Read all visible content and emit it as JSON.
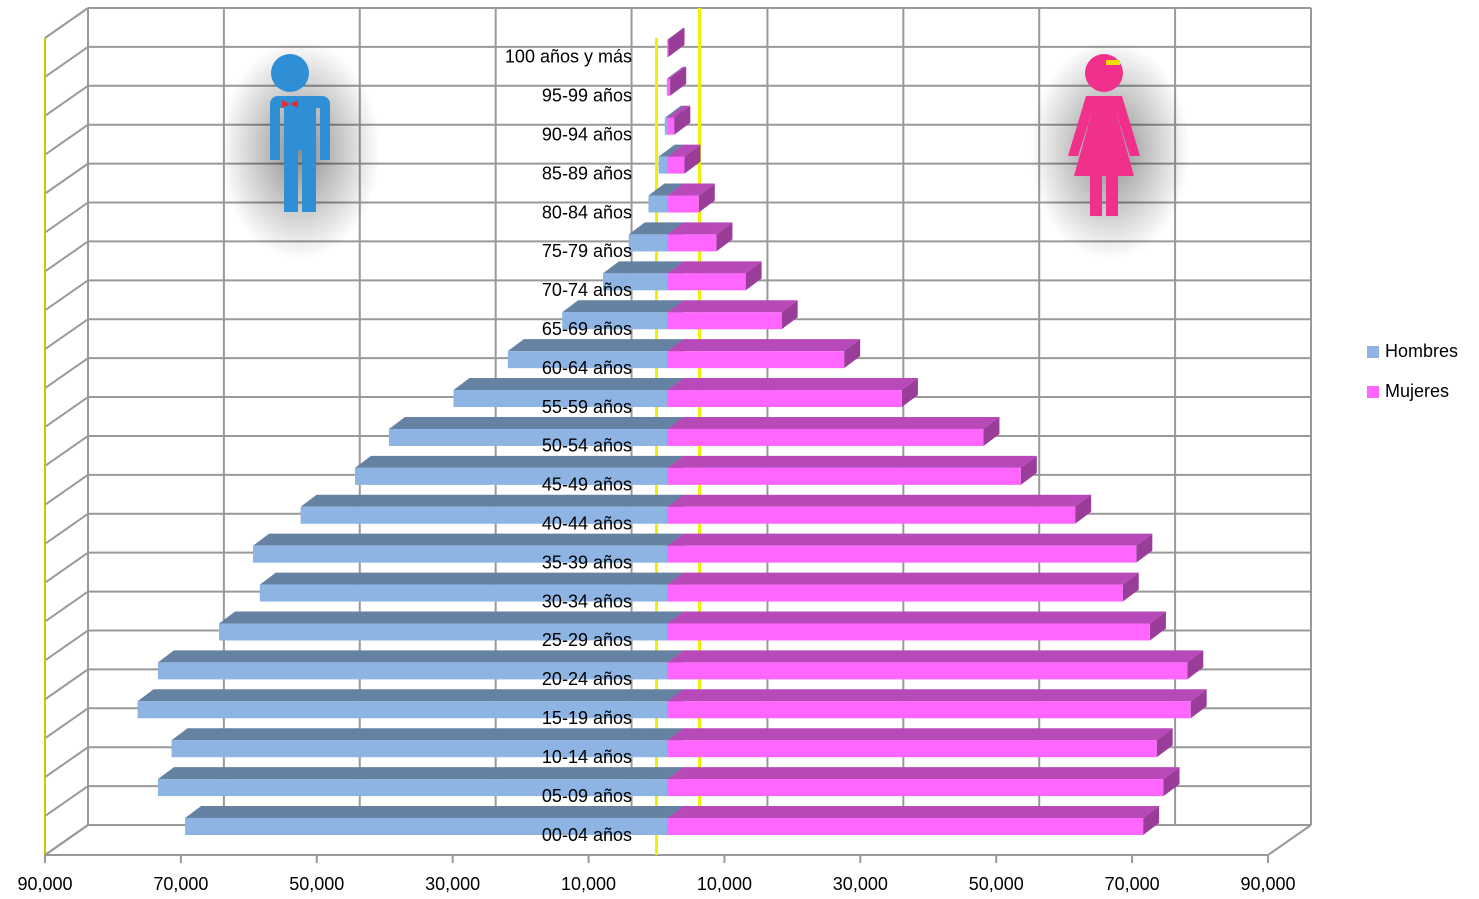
{
  "chart_data": {
    "type": "population-pyramid",
    "categories": [
      "00-04 años",
      "05-09 años",
      "10-14 años",
      "15-19 años",
      "20-24 años",
      "25-29 años",
      "30-34 años",
      "35-39 años",
      "40-44 años",
      "45-49 años",
      "50-54 años",
      "55-59 años",
      "60-64 años",
      "65-69 años",
      "70-74 años",
      "75-79 años",
      "80-84 años",
      "85-89 años",
      "90-94 años",
      "95-99 años",
      "100 años y más"
    ],
    "series": [
      {
        "name": "Hombres",
        "color": "#8db4e2",
        "side": "left",
        "values": [
          71000,
          75000,
          73000,
          78000,
          75000,
          66000,
          60000,
          61000,
          54000,
          46000,
          41000,
          31500,
          23500,
          15500,
          9500,
          5700,
          2800,
          1300,
          400,
          100,
          50
        ]
      },
      {
        "name": "Mujeres",
        "color": "#ff66ff",
        "side": "right",
        "values": [
          70000,
          73000,
          72000,
          77000,
          76500,
          71000,
          67000,
          69000,
          60000,
          52000,
          46500,
          34500,
          26000,
          16800,
          11500,
          7200,
          4600,
          2500,
          1000,
          400,
          150
        ]
      }
    ],
    "xlim": [
      -90000,
      90000
    ],
    "xticks": [
      {
        "value": -90000,
        "label": "90,000"
      },
      {
        "value": -70000,
        "label": "70,000"
      },
      {
        "value": -50000,
        "label": "50,000"
      },
      {
        "value": -30000,
        "label": "30,000"
      },
      {
        "value": -10000,
        "label": "10,000"
      },
      {
        "value": 10000,
        "label": "10,000"
      },
      {
        "value": 30000,
        "label": "30,000"
      },
      {
        "value": 50000,
        "label": "50,000"
      },
      {
        "value": 70000,
        "label": "70,000"
      },
      {
        "value": 90000,
        "label": "90,000"
      }
    ],
    "grid": true,
    "legend": "right"
  }
}
